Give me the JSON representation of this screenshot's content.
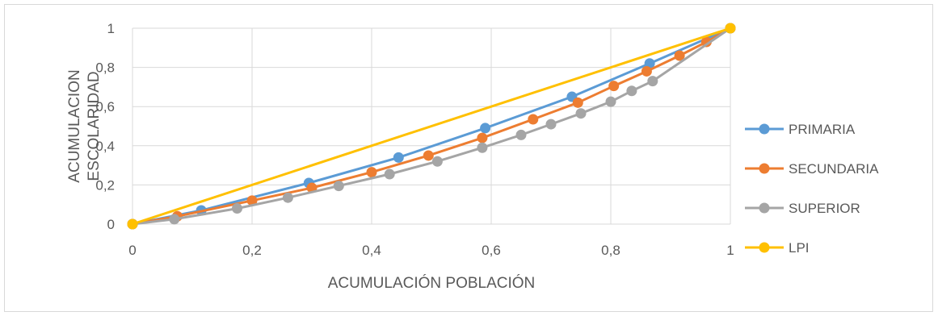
{
  "chart_data": {
    "type": "line",
    "xlabel": "ACUMULACIÓN POBLACIÓN",
    "ylabel_lines": [
      "ACUMULACION",
      "ESCOLARIDAD"
    ],
    "xlim": [
      0,
      1
    ],
    "ylim": [
      0,
      1
    ],
    "x_ticks": [
      "0",
      "0,2",
      "0,4",
      "0,6",
      "0,8",
      "1"
    ],
    "y_ticks": [
      "0",
      "0,2",
      "0,4",
      "0,6",
      "0,8",
      "1"
    ],
    "grid": true,
    "legend_position": "right",
    "series": [
      {
        "name": "PRIMARIA",
        "color": "#5b9bd5",
        "points": [
          [
            0,
            0
          ],
          [
            0.115,
            0.07
          ],
          [
            0.295,
            0.21
          ],
          [
            0.445,
            0.34
          ],
          [
            0.59,
            0.49
          ],
          [
            0.735,
            0.65
          ],
          [
            0.865,
            0.82
          ],
          [
            1,
            1
          ]
        ]
      },
      {
        "name": "SECUNDARIA",
        "color": "#ed7d31",
        "points": [
          [
            0,
            0
          ],
          [
            0.075,
            0.04
          ],
          [
            0.2,
            0.12
          ],
          [
            0.3,
            0.185
          ],
          [
            0.4,
            0.265
          ],
          [
            0.495,
            0.35
          ],
          [
            0.585,
            0.44
          ],
          [
            0.67,
            0.535
          ],
          [
            0.745,
            0.62
          ],
          [
            0.805,
            0.705
          ],
          [
            0.86,
            0.78
          ],
          [
            0.915,
            0.86
          ],
          [
            0.96,
            0.93
          ],
          [
            1,
            1
          ]
        ]
      },
      {
        "name": "SUPERIOR",
        "color": "#a5a5a5",
        "points": [
          [
            0,
            0
          ],
          [
            0.07,
            0.025
          ],
          [
            0.175,
            0.08
          ],
          [
            0.26,
            0.135
          ],
          [
            0.345,
            0.195
          ],
          [
            0.43,
            0.255
          ],
          [
            0.51,
            0.32
          ],
          [
            0.585,
            0.39
          ],
          [
            0.65,
            0.455
          ],
          [
            0.7,
            0.51
          ],
          [
            0.75,
            0.565
          ],
          [
            0.8,
            0.625
          ],
          [
            0.835,
            0.68
          ],
          [
            0.87,
            0.73
          ],
          [
            1,
            1
          ]
        ]
      },
      {
        "name": "LPI",
        "color": "#ffc000",
        "points": [
          [
            0,
            0
          ],
          [
            1,
            1
          ]
        ]
      }
    ]
  }
}
